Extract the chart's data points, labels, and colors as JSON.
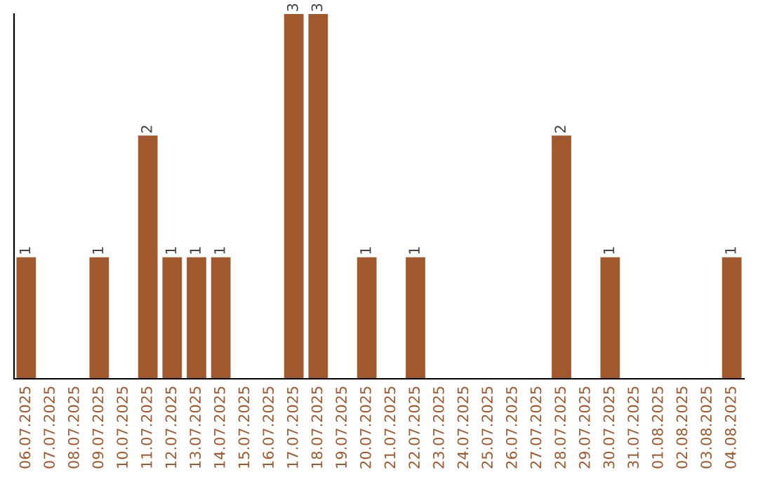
{
  "chart_data": {
    "type": "bar",
    "categories": [
      "06.07.2025",
      "07.07.2025",
      "08.07.2025",
      "09.07.2025",
      "10.07.2025",
      "11.07.2025",
      "12.07.2025",
      "13.07.2025",
      "14.07.2025",
      "15.07.2025",
      "16.07.2025",
      "17.07.2025",
      "18.07.2025",
      "19.07.2025",
      "20.07.2025",
      "21.07.2025",
      "22.07.2025",
      "23.07.2025",
      "24.07.2025",
      "25.07.2025",
      "26.07.2025",
      "27.07.2025",
      "28.07.2025",
      "29.07.2025",
      "30.07.2025",
      "31.07.2025",
      "01.08.2025",
      "02.08.2025",
      "03.08.2025",
      "04.08.2025"
    ],
    "values": [
      1,
      0,
      0,
      1,
      0,
      2,
      1,
      1,
      1,
      0,
      0,
      3,
      3,
      0,
      1,
      0,
      1,
      0,
      0,
      0,
      0,
      0,
      2,
      0,
      1,
      0,
      0,
      0,
      0,
      1
    ],
    "value_labels": [
      "1",
      null,
      null,
      "1",
      null,
      "2",
      "1",
      "1",
      "1",
      null,
      null,
      "3",
      "3",
      null,
      "1",
      null,
      "1",
      null,
      null,
      null,
      null,
      null,
      "2",
      null,
      "1",
      null,
      null,
      null,
      null,
      "1"
    ],
    "color": "#a0582c",
    "tick_labels": "x",
    "grid": false,
    "legend": false
  }
}
